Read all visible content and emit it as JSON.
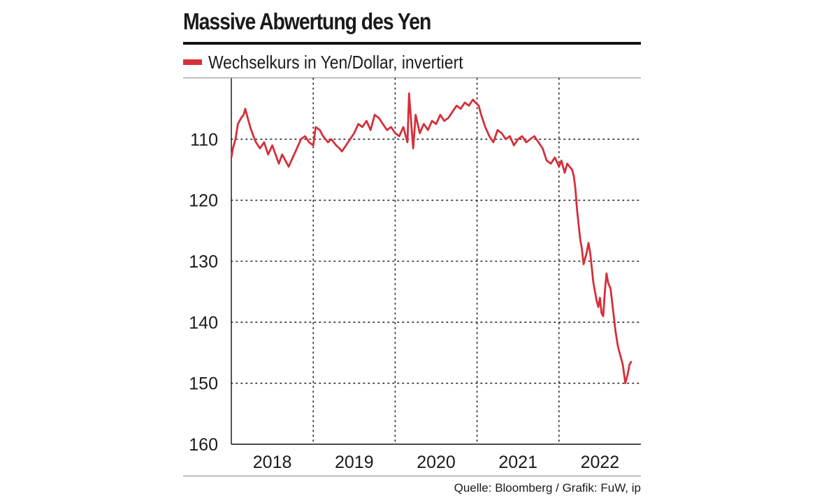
{
  "title": "Massive Abwertung des Yen",
  "legend": {
    "label": "Wechselkurs in Yen/Dollar, invertiert"
  },
  "source": "Quelle: Bloomberg / Grafik: FuW, ip",
  "colors": {
    "series": "#d42f3a",
    "grid": "#222222",
    "axis": "#111111"
  },
  "chart_data": {
    "type": "line",
    "title": "Massive Abwertung des Yen",
    "xlabel": "",
    "ylabel": "",
    "inverted_y": true,
    "ylim": [
      100,
      160
    ],
    "yticks": [
      110,
      120,
      130,
      140,
      150,
      160
    ],
    "ytick_labels": [
      "110",
      "120",
      "130",
      "140",
      "150",
      "160"
    ],
    "xlim": [
      2017.5,
      2022.5
    ],
    "xtick_labels": [
      "2018",
      "2019",
      "2020",
      "2021",
      "2022"
    ],
    "xtick_centers": [
      2018.0,
      2019.0,
      2020.0,
      2021.0,
      2022.0
    ],
    "year_separators": [
      2018.5,
      2019.5,
      2020.5,
      2021.5
    ],
    "grid": true,
    "series": [
      {
        "name": "Wechselkurs in Yen/Dollar, invertiert",
        "x": [
          2017.5,
          2017.52,
          2017.55,
          2017.58,
          2017.62,
          2017.65,
          2017.67,
          2017.7,
          2017.73,
          2017.77,
          2017.8,
          2017.85,
          2017.9,
          2017.95,
          2018.0,
          2018.04,
          2018.08,
          2018.12,
          2018.16,
          2018.2,
          2018.25,
          2018.3,
          2018.35,
          2018.4,
          2018.45,
          2018.5,
          2018.53,
          2018.58,
          2018.62,
          2018.68,
          2018.72,
          2018.78,
          2018.82,
          2018.85,
          2018.9,
          2018.95,
          2019.0,
          2019.05,
          2019.1,
          2019.15,
          2019.2,
          2019.25,
          2019.3,
          2019.35,
          2019.4,
          2019.45,
          2019.5,
          2019.55,
          2019.6,
          2019.63,
          2019.65,
          2019.67,
          2019.7,
          2019.72,
          2019.75,
          2019.8,
          2019.85,
          2019.9,
          2019.95,
          2020.0,
          2020.05,
          2020.1,
          2020.15,
          2020.2,
          2020.25,
          2020.3,
          2020.35,
          2020.4,
          2020.45,
          2020.48,
          2020.52,
          2020.55,
          2020.6,
          2020.65,
          2020.7,
          2020.75,
          2020.8,
          2020.85,
          2020.9,
          2020.95,
          2021.0,
          2021.05,
          2021.1,
          2021.15,
          2021.2,
          2021.25,
          2021.3,
          2021.35,
          2021.4,
          2021.45,
          2021.5,
          2021.53,
          2021.57,
          2021.6,
          2021.63,
          2021.66,
          2021.68,
          2021.7,
          2021.72,
          2021.74,
          2021.76,
          2021.78,
          2021.8,
          2021.82,
          2021.84,
          2021.86,
          2021.88,
          2021.9,
          2021.92,
          2021.94,
          2021.96,
          2021.98,
          2022.0,
          2022.02,
          2022.04,
          2022.06,
          2022.08,
          2022.1,
          2022.13,
          2022.16,
          2022.19,
          2022.22,
          2022.25,
          2022.28,
          2022.31,
          2022.34,
          2022.36,
          2022.38
        ],
        "values": [
          113.0,
          111.5,
          110.0,
          107.5,
          106.5,
          106.0,
          105.0,
          106.5,
          108.0,
          109.5,
          110.5,
          111.5,
          110.5,
          112.5,
          111.0,
          112.5,
          114.0,
          112.5,
          113.5,
          114.5,
          113.0,
          111.5,
          110.0,
          109.5,
          110.5,
          111.0,
          108.0,
          108.5,
          109.5,
          110.5,
          110.0,
          111.0,
          111.5,
          112.0,
          111.0,
          110.0,
          109.0,
          107.5,
          108.0,
          107.0,
          108.5,
          106.0,
          106.5,
          107.5,
          108.5,
          108.0,
          109.0,
          109.5,
          108.0,
          109.5,
          110.5,
          102.5,
          108.0,
          111.5,
          106.0,
          109.0,
          107.5,
          108.5,
          107.0,
          107.5,
          106.0,
          107.0,
          106.5,
          105.5,
          104.5,
          105.0,
          104.0,
          104.5,
          103.5,
          104.0,
          104.5,
          106.0,
          108.0,
          109.5,
          110.5,
          108.5,
          109.0,
          110.0,
          109.5,
          111.0,
          110.0,
          109.5,
          110.5,
          110.0,
          109.5,
          110.5,
          111.5,
          113.5,
          114.0,
          113.0,
          114.5,
          113.5,
          115.5,
          114.0,
          114.5,
          115.0,
          116.0,
          118.0,
          121.5,
          124.0,
          126.5,
          128.0,
          130.5,
          129.5,
          128.5,
          127.0,
          128.5,
          131.0,
          133.5,
          135.0,
          136.5,
          137.5,
          136.0,
          138.5,
          139.0,
          135.0,
          132.0,
          133.5,
          134.5,
          138.0,
          141.5,
          144.0,
          145.5,
          147.0,
          150.0,
          148.5,
          147.0,
          146.5
        ]
      }
    ]
  }
}
